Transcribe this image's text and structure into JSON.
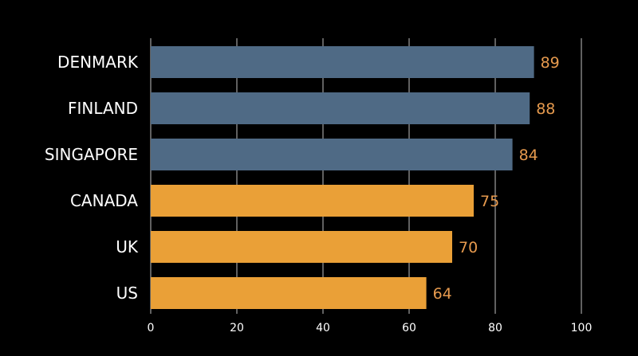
{
  "chart_data": {
    "type": "bar",
    "orientation": "horizontal",
    "categories": [
      "DENMARK",
      "FINLAND",
      "SINGAPORE",
      "CANADA",
      "UK",
      "US"
    ],
    "values": [
      89,
      88,
      84,
      75,
      70,
      64
    ],
    "value_labels": [
      "89",
      "88",
      "84",
      "75",
      "70",
      "64"
    ],
    "highlight_colors": {
      "top": "#4f6a85",
      "rest": "#eaa037"
    },
    "bar_colors": [
      "#4f6a85",
      "#4f6a85",
      "#4f6a85",
      "#eaa037",
      "#eaa037",
      "#eaa037"
    ],
    "value_label_color": "#e69a4e",
    "xlim": [
      0,
      100
    ],
    "x_ticks": [
      0,
      20,
      40,
      60,
      80,
      100
    ],
    "x_tick_labels": [
      "0",
      "20",
      "40",
      "60",
      "80",
      "100"
    ],
    "grid": "vertical",
    "grid_color": "#ffffff",
    "background": "#000000",
    "legend": "none",
    "title": "",
    "xlabel": "",
    "ylabel": ""
  }
}
